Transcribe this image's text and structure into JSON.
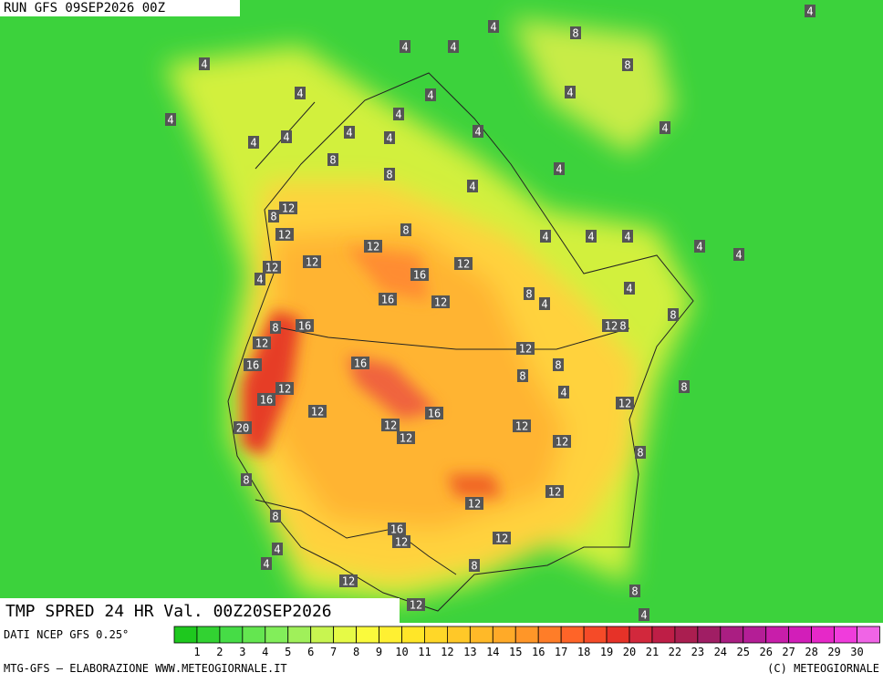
{
  "header": {
    "run": "RUN GFS 09SEP2026 00Z"
  },
  "map": {
    "labels": [
      4,
      4,
      8,
      4,
      4,
      4,
      8,
      4,
      4,
      4,
      4,
      4,
      4,
      4,
      4,
      4,
      4,
      4,
      8,
      4,
      8,
      4,
      12,
      8,
      12,
      8,
      4,
      4,
      4,
      12,
      4,
      4,
      12,
      12,
      12,
      16,
      4,
      8,
      4,
      16,
      12,
      4,
      8,
      16,
      8,
      12,
      8,
      12,
      12,
      16,
      16,
      8,
      8,
      12,
      8,
      16,
      4,
      12,
      12,
      16,
      12,
      12,
      20,
      12,
      12,
      8,
      8,
      12,
      12,
      8,
      16,
      12,
      12,
      4,
      4,
      8,
      12,
      8,
      12,
      4
    ]
  },
  "product": {
    "title": "TMP SPRED 24 HR Val. 00Z20SEP2026"
  },
  "legend": {
    "source": "DATI NCEP GFS 0.25°",
    "labels": [
      1,
      2,
      3,
      4,
      5,
      6,
      7,
      8,
      9,
      10,
      11,
      12,
      13,
      14,
      15,
      16,
      17,
      18,
      19,
      20,
      21,
      22,
      23,
      24,
      25,
      26,
      27,
      28,
      29,
      30
    ],
    "colors": [
      "#1ec81e",
      "#32d232",
      "#46dc46",
      "#64e650",
      "#82ee5a",
      "#a0f05a",
      "#c8f550",
      "#e6fa46",
      "#fafa3c",
      "#fff032",
      "#ffe628",
      "#ffd728",
      "#ffc828",
      "#ffb928",
      "#ffaa28",
      "#ff9628",
      "#ff7d28",
      "#ff6428",
      "#f54b28",
      "#e63228",
      "#d2283c",
      "#be1e46",
      "#aa1e50",
      "#a01e64",
      "#aa1e82",
      "#b41e96",
      "#c81eaa",
      "#d21eb9",
      "#e628c8",
      "#f03cdc",
      "#f064e6"
    ]
  },
  "footer": {
    "left": "MTG-GFS — ELABORAZIONE WWW.METEOGIORNALE.IT",
    "right": "(C) METEOGIORNALE"
  }
}
